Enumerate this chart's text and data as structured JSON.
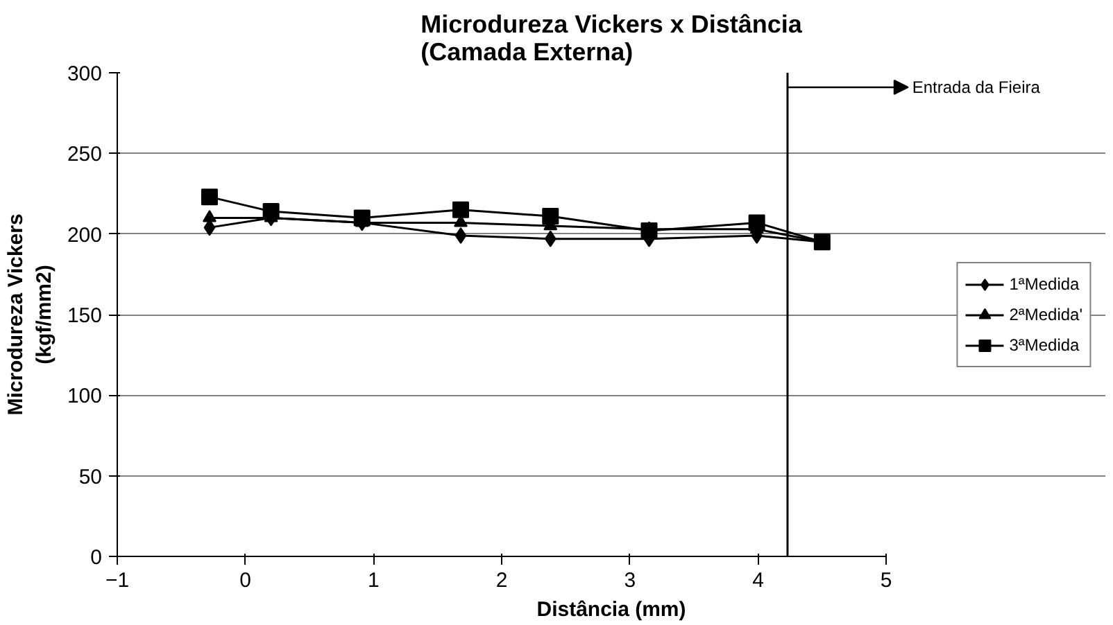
{
  "chart_data": {
    "type": "line",
    "title": "Microdureza Vickers x Distância\n(Camada Externa)",
    "xlabel": "Distância (mm)",
    "ylabel": "Microdureza Vickers\n(kgf/mm2)",
    "x": [
      -0.28,
      0.2,
      0.91,
      1.68,
      2.38,
      3.15,
      3.99,
      4.5
    ],
    "series": [
      {
        "name": "1ªMedida",
        "color": "#000000",
        "marker": "diamond",
        "values": [
          204,
          210,
          207,
          199,
          197,
          197,
          199,
          195
        ]
      },
      {
        "name": "2ªMedida'",
        "color": "#000000",
        "marker": "triangle",
        "values": [
          210,
          210,
          207,
          207,
          205,
          203,
          203,
          195
        ]
      },
      {
        "name": "3ªMedida",
        "color": "#000000",
        "marker": "square",
        "values": [
          223,
          214,
          210,
          215,
          211,
          202,
          207,
          195
        ]
      }
    ],
    "xlim": [
      -1,
      5
    ],
    "xticks": [
      -1,
      0,
      1,
      2,
      3,
      4,
      5
    ],
    "ylim": [
      0,
      300
    ],
    "yticks": [
      0,
      50,
      100,
      150,
      200,
      250,
      300
    ],
    "ref_lines": [
      {
        "axis": "x",
        "value": 4.23,
        "label": "Entrada da Fieira",
        "color": "#000000"
      }
    ],
    "grid": "y",
    "legend": "right",
    "line_style": "solid"
  }
}
